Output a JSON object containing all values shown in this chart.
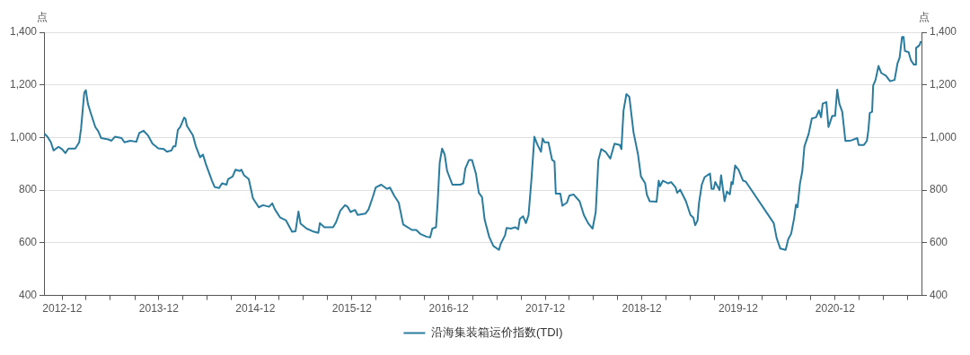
{
  "chart_data": {
    "type": "line",
    "ylabel": "点",
    "y2label": "点",
    "legend": "bottom",
    "grid": "y",
    "marker": "none",
    "line_style": "solid",
    "xlim": [
      "2012-09-23",
      "2021-10-27"
    ],
    "xticks": [
      {
        "value": "2012-12",
        "label": "2012-12"
      },
      {
        "value": "2013-03",
        "label": null
      },
      {
        "value": "2013-06",
        "label": null
      },
      {
        "value": "2013-09",
        "label": null
      },
      {
        "value": "2013-12",
        "label": "2013-12"
      },
      {
        "value": "2014-03",
        "label": null
      },
      {
        "value": "2014-06",
        "label": null
      },
      {
        "value": "2014-09",
        "label": null
      },
      {
        "value": "2014-12",
        "label": "2014-12"
      },
      {
        "value": "2015-03",
        "label": null
      },
      {
        "value": "2015-06",
        "label": null
      },
      {
        "value": "2015-09",
        "label": null
      },
      {
        "value": "2015-12",
        "label": "2015-12"
      },
      {
        "value": "2016-03",
        "label": null
      },
      {
        "value": "2016-06",
        "label": null
      },
      {
        "value": "2016-09",
        "label": null
      },
      {
        "value": "2016-12",
        "label": "2016-12"
      },
      {
        "value": "2017-03",
        "label": null
      },
      {
        "value": "2017-06",
        "label": null
      },
      {
        "value": "2017-09",
        "label": null
      },
      {
        "value": "2017-12",
        "label": "2017-12"
      },
      {
        "value": "2018-03",
        "label": null
      },
      {
        "value": "2018-06",
        "label": null
      },
      {
        "value": "2018-09",
        "label": null
      },
      {
        "value": "2018-12",
        "label": "2018-12"
      },
      {
        "value": "2019-03",
        "label": null
      },
      {
        "value": "2019-06",
        "label": null
      },
      {
        "value": "2019-09",
        "label": null
      },
      {
        "value": "2019-12",
        "label": "2019-12"
      },
      {
        "value": "2020-03",
        "label": null
      },
      {
        "value": "2020-06",
        "label": null
      },
      {
        "value": "2020-09",
        "label": null
      },
      {
        "value": "2020-12",
        "label": "2020-12"
      },
      {
        "value": "2021-03",
        "label": null
      },
      {
        "value": "2021-06",
        "label": null
      },
      {
        "value": "2021-09",
        "label": null
      }
    ],
    "ylim": [
      400,
      1400
    ],
    "yticks": [
      {
        "value": 400,
        "label": "400"
      },
      {
        "value": 600,
        "label": "600"
      },
      {
        "value": 800,
        "label": "800"
      },
      {
        "value": 1000,
        "label": "1,000"
      },
      {
        "value": 1200,
        "label": "1,200"
      },
      {
        "value": 1400,
        "label": "1,400"
      }
    ],
    "y2lim": [
      400,
      1400
    ],
    "y2ticks": [
      {
        "value": 400,
        "label": "400"
      },
      {
        "value": 600,
        "label": "600"
      },
      {
        "value": 800,
        "label": "800"
      },
      {
        "value": 1000,
        "label": "1,000"
      },
      {
        "value": 1200,
        "label": "1,200"
      },
      {
        "value": 1400,
        "label": "1,400"
      }
    ],
    "x": [
      "2012-09-25",
      "2012-10-06",
      "2012-10-19",
      "2012-10-29",
      "2012-11-17",
      "2012-11-30",
      "2012-12-13",
      "2012-12-24",
      "2013-01-19",
      "2013-02-03",
      "2013-02-10",
      "2013-02-22",
      "2013-02-28",
      "2013-03-08",
      "2013-03-19",
      "2013-04-05",
      "2013-04-16",
      "2013-04-27",
      "2013-05-24",
      "2013-06-05",
      "2013-06-18",
      "2013-07-13",
      "2013-07-24",
      "2013-08-15",
      "2013-09-07",
      "2013-09-18",
      "2013-10-04",
      "2013-10-21",
      "2013-11-07",
      "2013-11-29",
      "2013-12-20",
      "2014-01-01",
      "2014-01-18",
      "2014-01-25",
      "2014-02-02",
      "2014-02-11",
      "2014-02-20",
      "2014-03-07",
      "2014-03-12",
      "2014-03-17",
      "2014-04-09",
      "2014-04-20",
      "2014-05-06",
      "2014-05-17",
      "2014-05-28",
      "2014-06-20",
      "2014-06-30",
      "2014-07-17",
      "2014-07-28",
      "2014-08-14",
      "2014-08-20",
      "2014-09-06",
      "2014-09-17",
      "2014-10-03",
      "2014-10-09",
      "2014-10-19",
      "2014-11-06",
      "2014-11-22",
      "2014-12-14",
      "2014-12-30",
      "2015-01-22",
      "2015-02-03",
      "2015-02-13",
      "2015-03-05",
      "2015-03-27",
      "2015-04-19",
      "2015-05-02",
      "2015-05-13",
      "2015-05-21",
      "2015-06-13",
      "2015-07-05",
      "2015-07-27",
      "2015-08-02",
      "2015-08-19",
      "2015-09-21",
      "2015-10-02",
      "2015-10-18",
      "2015-11-05",
      "2015-11-15",
      "2015-11-26",
      "2015-12-13",
      "2015-12-23",
      "2016-01-21",
      "2016-02-02",
      "2016-02-18",
      "2016-02-29",
      "2016-03-21",
      "2016-04-12",
      "2016-04-23",
      "2016-05-09",
      "2016-05-26",
      "2016-06-12",
      "2016-07-15",
      "2016-07-31",
      "2016-08-17",
      "2016-09-09",
      "2016-09-22",
      "2016-09-30",
      "2016-10-14",
      "2016-10-20",
      "2016-10-28",
      "2016-11-06",
      "2016-11-16",
      "2016-11-25",
      "2016-12-15",
      "2017-01-14",
      "2017-01-25",
      "2017-02-02",
      "2017-02-16",
      "2017-02-27",
      "2017-03-14",
      "2017-03-25",
      "2017-04-06",
      "2017-04-16",
      "2017-05-03",
      "2017-05-19",
      "2017-06-09",
      "2017-06-16",
      "2017-07-02",
      "2017-07-08",
      "2017-07-24",
      "2017-08-10",
      "2017-08-21",
      "2017-08-27",
      "2017-09-08",
      "2017-09-19",
      "2017-09-29",
      "2017-10-10",
      "2017-10-21",
      "2017-11-02",
      "2017-11-15",
      "2017-11-21",
      "2017-11-29",
      "2017-12-13",
      "2017-12-27",
      "2018-01-05",
      "2018-01-10",
      "2018-01-27",
      "2018-02-04",
      "2018-02-21",
      "2018-03-02",
      "2018-03-18",
      "2018-04-10",
      "2018-04-26",
      "2018-05-12",
      "2018-05-29",
      "2018-06-10",
      "2018-06-20",
      "2018-07-01",
      "2018-07-17",
      "2018-08-04",
      "2018-08-20",
      "2018-09-09",
      "2018-09-15",
      "2018-09-23",
      "2018-10-04",
      "2018-10-15",
      "2018-10-31",
      "2018-11-17",
      "2018-11-28",
      "2018-12-14",
      "2018-12-20",
      "2018-12-31",
      "2019-01-26",
      "2019-02-03",
      "2019-02-08",
      "2019-02-19",
      "2019-03-11",
      "2019-03-22",
      "2019-04-08",
      "2019-04-14",
      "2019-04-25",
      "2019-05-17",
      "2019-06-03",
      "2019-06-14",
      "2019-06-21",
      "2019-06-30",
      "2019-07-05",
      "2019-07-16",
      "2019-07-27",
      "2019-08-16",
      "2019-08-22",
      "2019-08-30",
      "2019-09-05",
      "2019-09-21",
      "2019-09-27",
      "2019-10-10",
      "2019-10-19",
      "2019-10-30",
      "2019-11-05",
      "2019-11-10",
      "2019-11-19",
      "2019-12-02",
      "2019-12-19",
      "2019-12-29",
      "2020-04-13",
      "2020-04-24",
      "2020-05-08",
      "2020-05-28",
      "2020-06-07",
      "2020-06-18",
      "2020-06-29",
      "2020-07-06",
      "2020-07-12",
      "2020-07-21",
      "2020-07-30",
      "2020-08-07",
      "2020-08-23",
      "2020-09-04",
      "2020-09-20",
      "2020-10-01",
      "2020-10-09",
      "2020-10-15",
      "2020-10-29",
      "2020-11-06",
      "2020-11-20",
      "2020-12-01",
      "2020-12-09",
      "2020-12-17",
      "2020-12-28",
      "2021-01-09",
      "2021-01-31",
      "2021-02-23",
      "2021-02-28",
      "2021-03-20",
      "2021-03-31",
      "2021-04-06",
      "2021-04-11",
      "2021-04-20",
      "2021-04-24",
      "2021-05-03",
      "2021-05-14",
      "2021-05-25",
      "2021-06-11",
      "2021-06-27",
      "2021-07-14",
      "2021-07-25",
      "2021-08-02",
      "2021-08-11",
      "2021-08-17",
      "2021-08-22",
      "2021-09-05",
      "2021-09-14",
      "2021-09-25",
      "2021-09-30",
      "2021-10-03",
      "2021-10-16",
      "2021-10-22"
    ],
    "series": [
      {
        "name": "沿海集装箱运价指数(TDI)",
        "color": "#2a7c9f",
        "values": [
          1014,
          1003,
          982,
          951,
          965,
          956,
          941,
          958,
          958,
          982,
          1034,
          1170,
          1180,
          1128,
          1092,
          1040,
          1024,
          998,
          993,
          988,
          1003,
          998,
          982,
          988,
          984,
          1017,
          1026,
          1008,
          977,
          959,
          956,
          946,
          951,
          967,
          967,
          1029,
          1040,
          1076,
          1071,
          1045,
          1008,
          967,
          925,
          935,
          899,
          836,
          812,
          808,
          826,
          821,
          842,
          852,
          878,
          873,
          878,
          857,
          842,
          769,
          735,
          743,
          737,
          750,
          727,
          696,
          685,
          642,
          644,
          719,
          673,
          654,
          644,
          638,
          675,
          659,
          659,
          678,
          722,
          743,
          737,
          717,
          725,
          706,
          711,
          727,
          774,
          810,
          821,
          805,
          810,
          779,
          753,
          670,
          649,
          649,
          633,
          623,
          621,
          654,
          659,
          748,
          904,
          958,
          935,
          873,
          821,
          821,
          826,
          883,
          915,
          915,
          863,
          790,
          774,
          688,
          623,
          588,
          573,
          597,
          628,
          657,
          654,
          659,
          652,
          691,
          701,
          675,
          706,
          842,
          1003,
          972,
          946,
          996,
          982,
          982,
          915,
          909,
          787,
          787,
          741,
          753,
          779,
          784,
          758,
          706,
          675,
          654,
          717,
          915,
          956,
          946,
          920,
          977,
          972,
          956,
          1102,
          1165,
          1155,
          1019,
          935,
          852,
          826,
          784,
          758,
          756,
          836,
          815,
          836,
          826,
          831,
          810,
          790,
          802,
          758,
          706,
          696,
          667,
          685,
          748,
          821,
          850,
          863,
          805,
          805,
          831,
          800,
          857,
          758,
          795,
          784,
          831,
          823,
          894,
          878,
          836,
          833,
          675,
          618,
          578,
          573,
          614,
          635,
          693,
          745,
          735,
          824,
          872,
          966,
          1014,
          1072,
          1077,
          1103,
          1077,
          1129,
          1135,
          1040,
          1082,
          1082,
          1182,
          1129,
          1098,
          987,
          989,
          998,
          972,
          972,
          987,
          1029,
          1093,
          1098,
          1198,
          1219,
          1272,
          1245,
          1235,
          1214,
          1219,
          1282,
          1303,
          1382,
          1382,
          1329,
          1324,
          1293,
          1277,
          1277,
          1340,
          1351,
          1366
        ]
      }
    ]
  }
}
